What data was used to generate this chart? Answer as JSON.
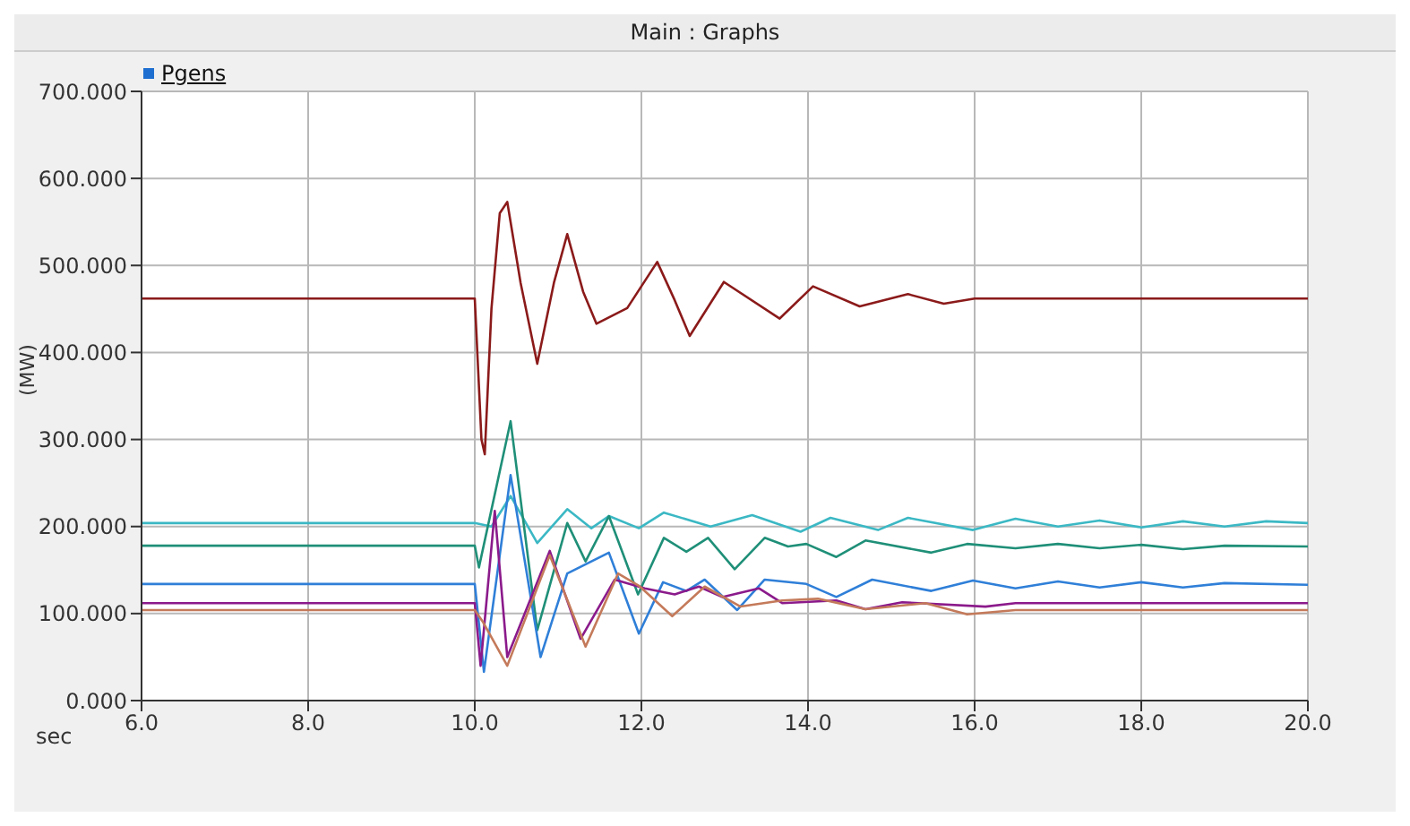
{
  "chart_data": {
    "type": "line",
    "title": "Main : Graphs",
    "legend_title": "Pgens",
    "xlabel": "sec",
    "ylabel": "(MW)",
    "xlim": [
      6,
      20
    ],
    "xticks": [
      {
        "value": 6,
        "label": "6.0"
      },
      {
        "value": 8,
        "label": "8.0"
      },
      {
        "value": 10,
        "label": "10.0"
      },
      {
        "value": 12,
        "label": "12.0"
      },
      {
        "value": 14,
        "label": "14.0"
      },
      {
        "value": 16,
        "label": "16.0"
      },
      {
        "value": 18,
        "label": "18.0"
      },
      {
        "value": 20,
        "label": "20.0"
      }
    ],
    "ylim": [
      0,
      700
    ],
    "yticks": [
      {
        "value": 0,
        "label": "0.000"
      },
      {
        "value": 100,
        "label": "100.000"
      },
      {
        "value": 200,
        "label": "200.000"
      },
      {
        "value": 300,
        "label": "300.000"
      },
      {
        "value": 400,
        "label": "400.000"
      },
      {
        "value": 500,
        "label": "500.000"
      },
      {
        "value": 600,
        "label": "600.000"
      },
      {
        "value": 700,
        "label": "700.000"
      }
    ],
    "grid": true,
    "marker": "none",
    "line_style": "solid",
    "series": [
      {
        "color": "#8b1a1a",
        "x": [
          6,
          10,
          10.08,
          10.12,
          10.2,
          10.3,
          10.39,
          10.55,
          10.75,
          10.95,
          11.11,
          11.3,
          11.46,
          11.83,
          12.19,
          12.4,
          12.58,
          12.99,
          13.66,
          14.06,
          14.62,
          15.2,
          15.63,
          16,
          20
        ],
        "values": [
          462,
          462,
          300,
          283,
          450,
          560,
          573,
          480,
          387,
          480,
          536,
          470,
          433,
          451,
          504,
          460,
          419,
          481,
          439,
          476,
          453,
          467,
          456,
          462,
          462
        ]
      },
      {
        "color": "#3bb8c4",
        "x": [
          6,
          10,
          10.2,
          10.43,
          10.75,
          11.11,
          11.4,
          11.61,
          11.97,
          12.27,
          12.83,
          13.33,
          13.91,
          14.27,
          14.84,
          15.2,
          15.98,
          16.49,
          17,
          17.5,
          18,
          18.5,
          19,
          19.5,
          20
        ],
        "values": [
          204,
          204,
          200,
          235,
          181,
          220,
          198,
          212,
          198,
          216,
          200,
          213,
          194,
          210,
          196,
          210,
          196,
          209,
          200,
          207,
          199,
          206,
          200,
          206,
          204
        ]
      },
      {
        "color": "#1f8f78",
        "x": [
          6,
          10,
          10.05,
          10.43,
          10.75,
          11.11,
          11.33,
          11.61,
          11.96,
          12.27,
          12.54,
          12.8,
          13.12,
          13.48,
          13.76,
          13.98,
          14.34,
          14.69,
          15.48,
          15.91,
          16.49,
          17,
          17.5,
          18,
          18.5,
          19,
          20
        ],
        "values": [
          178,
          178,
          153,
          321,
          81,
          204,
          160,
          212,
          122,
          187,
          171,
          187,
          151,
          187,
          177,
          180,
          165,
          184,
          170,
          180,
          175,
          180,
          175,
          179,
          174,
          178,
          177
        ]
      },
      {
        "color": "#2f7fd8",
        "x": [
          6,
          10,
          10.11,
          10.43,
          10.79,
          11.11,
          11.61,
          11.97,
          12.26,
          12.54,
          12.76,
          13.15,
          13.48,
          13.98,
          14.34,
          14.77,
          15.48,
          15.98,
          16.49,
          17,
          17.5,
          18,
          18.5,
          19,
          20
        ],
        "values": [
          134,
          134,
          33,
          259,
          50,
          146,
          170,
          77,
          136,
          126,
          139,
          104,
          139,
          134,
          119,
          139,
          126,
          138,
          129,
          137,
          130,
          136,
          130,
          135,
          133
        ]
      },
      {
        "color": "#8b1a8b",
        "x": [
          6,
          10,
          10.07,
          10.24,
          10.39,
          10.9,
          11.27,
          11.68,
          12.04,
          12.4,
          12.69,
          12.97,
          13.41,
          13.69,
          14.34,
          14.69,
          15.13,
          16.13,
          16.49,
          20
        ],
        "values": [
          112,
          112,
          40,
          218,
          50,
          172,
          71,
          139,
          129,
          122,
          131,
          119,
          129,
          112,
          115,
          105,
          113,
          108,
          112,
          112
        ]
      },
      {
        "color": "#c47a5a",
        "x": [
          6,
          10,
          10.1,
          10.39,
          10.9,
          11.33,
          11.72,
          11.97,
          12.37,
          12.76,
          13.19,
          13.69,
          14.12,
          14.69,
          15.41,
          15.91,
          16.49,
          20
        ],
        "values": [
          104,
          104,
          90,
          40,
          167,
          62,
          146,
          132,
          97,
          131,
          108,
          115,
          117,
          105,
          112,
          99,
          104,
          104
        ]
      }
    ]
  }
}
